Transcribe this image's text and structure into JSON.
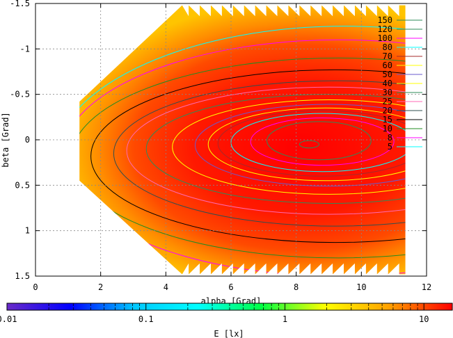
{
  "chart_data": {
    "type": "heatmap",
    "xlabel": "alpha [Grad]",
    "ylabel": "beta [Grad]",
    "colorbar_label": "E [lx]",
    "xlim": [
      0,
      12
    ],
    "ylim": [
      1.5,
      -1.5
    ],
    "x_ticks": [
      0,
      2,
      4,
      6,
      8,
      10,
      12
    ],
    "x_tick_labels": [
      "0",
      "2",
      "4",
      "6",
      "8",
      "10",
      "12"
    ],
    "y_ticks": [
      -1.5,
      -1,
      -0.5,
      0,
      0.5,
      1,
      1.5
    ],
    "y_tick_labels": [
      "-1.5",
      "-1",
      "-0.5",
      "0",
      "0.5",
      "1",
      "1.5"
    ],
    "grid": true,
    "colorbar": {
      "scale": "log",
      "range": [
        0.01,
        16
      ],
      "ticks": [
        0.01,
        0.1,
        1,
        10
      ],
      "tick_labels": [
        "0.01",
        "0.1",
        "1",
        "10"
      ],
      "stops": [
        "#6a2bc8",
        "#0000ff",
        "#00c8ff",
        "#00ffff",
        "#00ff44",
        "#ffff00",
        "#ffa200",
        "#ff0000"
      ]
    },
    "legend_position": "top-right",
    "contour_levels": [
      {
        "label": "150",
        "color": "#2e8b57"
      },
      {
        "label": "120",
        "color": "#2e8b57"
      },
      {
        "label": "100",
        "color": "#ff00ff"
      },
      {
        "label": "80",
        "color": "#00ffff"
      },
      {
        "label": "70",
        "color": "#a52a2a"
      },
      {
        "label": "60",
        "color": "#ffff00"
      },
      {
        "label": "50",
        "color": "#6a5acd"
      },
      {
        "label": "40",
        "color": "#ffff00"
      },
      {
        "label": "30",
        "color": "#2e8b57"
      },
      {
        "label": "25",
        "color": "#ff69b4"
      },
      {
        "label": "20",
        "color": "#2f4f4f"
      },
      {
        "label": "15",
        "color": "#000000"
      },
      {
        "label": "10",
        "color": "#228b22"
      },
      {
        "label": "8",
        "color": "#ff00ff"
      },
      {
        "label": "5",
        "color": "#00ffff"
      }
    ],
    "contours": [
      {
        "level": 5,
        "center": [
          9.5,
          0.3
        ],
        "rx": 9.0,
        "ry": 1.55
      },
      {
        "level": 8,
        "center": [
          9.3,
          0.2
        ],
        "rx": 8.5,
        "ry": 1.3
      },
      {
        "level": 10,
        "center": [
          9.3,
          0.2
        ],
        "rx": 8.2,
        "ry": 1.1
      },
      {
        "level": 15,
        "center": [
          9.2,
          0.18
        ],
        "rx": 7.5,
        "ry": 0.95
      },
      {
        "level": 20,
        "center": [
          9.2,
          0.15
        ],
        "rx": 6.8,
        "ry": 0.8
      },
      {
        "level": 25,
        "center": [
          9.0,
          0.12
        ],
        "rx": 6.2,
        "ry": 0.7
      },
      {
        "level": 30,
        "center": [
          9.0,
          0.1
        ],
        "rx": 5.6,
        "ry": 0.6
      },
      {
        "level": 40,
        "center": [
          9.0,
          0.08
        ],
        "rx": 4.8,
        "ry": 0.52
      },
      {
        "level": 50,
        "center": [
          9.0,
          0.06
        ],
        "rx": 4.1,
        "ry": 0.45
      },
      {
        "level": 60,
        "center": [
          8.9,
          0.05
        ],
        "rx": 3.6,
        "ry": 0.4
      },
      {
        "level": 70,
        "center": [
          8.8,
          0.04
        ],
        "rx": 3.2,
        "ry": 0.36
      },
      {
        "level": 80,
        "center": [
          8.8,
          0.03
        ],
        "rx": 2.8,
        "ry": 0.32
      },
      {
        "level": 100,
        "center": [
          8.8,
          0.02
        ],
        "rx": 2.2,
        "ry": 0.26
      },
      {
        "level": 120,
        "center": [
          8.7,
          0.01
        ],
        "rx": 1.6,
        "ry": 0.21
      },
      {
        "level": 150,
        "center": [
          8.4,
          0.05
        ],
        "rx": 0.3,
        "ry": 0.04
      }
    ]
  }
}
